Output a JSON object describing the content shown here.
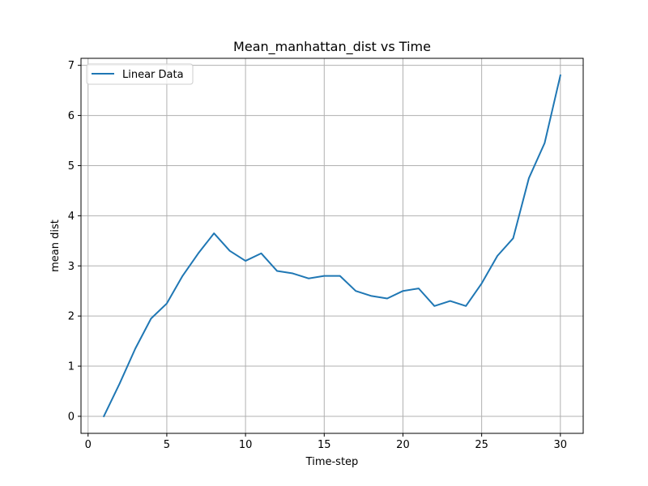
{
  "chart_data": {
    "type": "line",
    "title": "Mean_manhattan_dist vs Time",
    "xlabel": "Time-step",
    "ylabel": "mean dist",
    "xlim": [
      -0.45,
      31.45
    ],
    "ylim": [
      -0.34,
      7.14
    ],
    "xticks": [
      0,
      5,
      10,
      15,
      20,
      25,
      30
    ],
    "yticks": [
      0,
      1,
      2,
      3,
      4,
      5,
      6,
      7
    ],
    "grid": true,
    "legend_position": "top-left",
    "series": [
      {
        "name": "Linear Data",
        "color": "#1f77b4",
        "x": [
          1,
          2,
          3,
          4,
          5,
          6,
          7,
          8,
          9,
          10,
          11,
          12,
          13,
          14,
          15,
          16,
          17,
          18,
          19,
          20,
          21,
          22,
          23,
          24,
          25,
          26,
          27,
          28,
          29,
          30
        ],
        "y": [
          0.0,
          0.65,
          1.35,
          1.95,
          2.25,
          2.8,
          3.25,
          3.65,
          3.3,
          3.1,
          3.25,
          2.9,
          2.85,
          2.75,
          2.8,
          2.8,
          2.5,
          2.4,
          2.35,
          2.5,
          2.55,
          2.2,
          2.3,
          2.2,
          2.65,
          3.2,
          3.55,
          4.75,
          5.45,
          6.8
        ]
      }
    ]
  }
}
